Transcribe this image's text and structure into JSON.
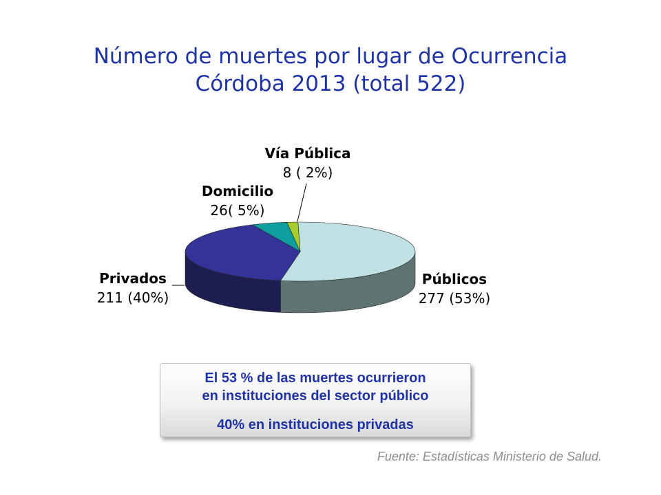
{
  "title": {
    "line1": "Número de muertes por lugar de Ocurrencia",
    "line2": "Córdoba 2013 (total 522)"
  },
  "chart_data": {
    "type": "pie",
    "style": "3d",
    "total": 522,
    "slices": [
      {
        "label": "Públicos",
        "value": 277,
        "percent": "53%",
        "display": "277 (53%)",
        "color": "#bfe1e4",
        "side_color": "#5f7372"
      },
      {
        "label": "Privados",
        "value": 211,
        "percent": "40%",
        "display": "211 (40%)",
        "color": "#33339a",
        "side_color": "#1d1d52"
      },
      {
        "label": "Domicilio",
        "value": 26,
        "percent": "5%",
        "display": "26( 5%)",
        "color": "#0f9e9e",
        "side_color": "#0a6a6a"
      },
      {
        "label": "Vía Pública",
        "value": 8,
        "percent": "2%",
        "display": "8 ( 2%)",
        "color": "#a6cc2e",
        "side_color": "#6b8a1a"
      }
    ]
  },
  "callout": {
    "line1": "El 53 %  de  las muertes ocurrieron",
    "line2": "en  instituciones del sector público",
    "line3": "40% en instituciones privadas"
  },
  "source": "Fuente: Estadísticas Ministerio de  Salud."
}
